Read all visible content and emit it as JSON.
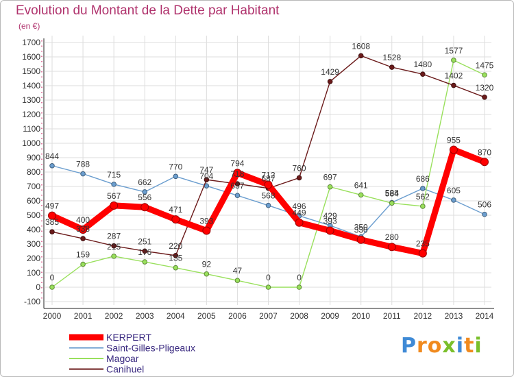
{
  "title": "Evolution du Montant de la Dette par Habitant",
  "subtitle": "(en €)",
  "logo": {
    "text": "Proxiti",
    "letters": [
      "P",
      "r",
      "o",
      "x",
      "i",
      "t",
      "i"
    ]
  },
  "chart_data": {
    "type": "line",
    "title": "Evolution du Montant de la Dette par Habitant",
    "ylabel": "(en €)",
    "ylim": [
      -100,
      1700
    ],
    "y_ticks": [
      -100,
      0,
      100,
      200,
      300,
      400,
      500,
      600,
      700,
      800,
      900,
      1000,
      1100,
      1200,
      1300,
      1400,
      1500,
      1600,
      1700
    ],
    "x": [
      "2000",
      "2001",
      "2002",
      "2003",
      "2004",
      "2005",
      "2006",
      "2007",
      "2008",
      "2009",
      "2010",
      "2011",
      "2012",
      "2013",
      "2014"
    ],
    "grid": true,
    "legend_position": "bottom-left",
    "series": [
      {
        "name": "KERPERT",
        "color": "#ff0000",
        "values": [
          497,
          400,
          567,
          556,
          471,
          393,
          794,
          712,
          449,
          393,
          330,
          280,
          235,
          955,
          870
        ]
      },
      {
        "name": "Saint-Gilles-Pligeaux",
        "color": "#6b9ecf",
        "values": [
          844,
          788,
          715,
          662,
          770,
          704,
          637,
          568,
          496,
          429,
          350,
          588,
          686,
          605,
          506
        ]
      },
      {
        "name": "Magoar",
        "color": "#99e05c",
        "values": [
          0,
          159,
          215,
          176,
          135,
          92,
          47,
          0,
          0,
          697,
          641,
          584,
          562,
          1577,
          1475
        ]
      },
      {
        "name": "Canihuel",
        "color": "#6b1a1a",
        "values": [
          385,
          338,
          287,
          251,
          220,
          747,
          718,
          687,
          760,
          1429,
          1608,
          1528,
          1480,
          1402,
          1320
        ]
      }
    ]
  }
}
